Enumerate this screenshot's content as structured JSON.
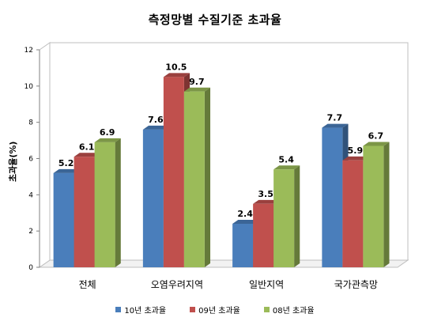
{
  "chart_data": {
    "type": "bar",
    "title": "측정망별 수질기준 초과율",
    "ylabel": "초과율(%)",
    "xlabel": "",
    "categories": [
      "전체",
      "오염우려지역",
      "일반지역",
      "국가관측망"
    ],
    "series": [
      {
        "name": "10년 초과율",
        "color": "#4a7ebb",
        "values": [
          5.2,
          7.6,
          2.4,
          7.7
        ]
      },
      {
        "name": "09년 초과율",
        "color": "#c0504d",
        "values": [
          6.1,
          10.5,
          3.5,
          5.9
        ]
      },
      {
        "name": "08년 초과율",
        "color": "#9bbb59",
        "values": [
          6.9,
          9.7,
          5.4,
          6.7
        ]
      }
    ],
    "ylim": [
      0,
      12
    ],
    "yticks": [
      0,
      2,
      4,
      6,
      8,
      10,
      12
    ],
    "grid": false,
    "legend": "bottom",
    "style": "3d"
  }
}
